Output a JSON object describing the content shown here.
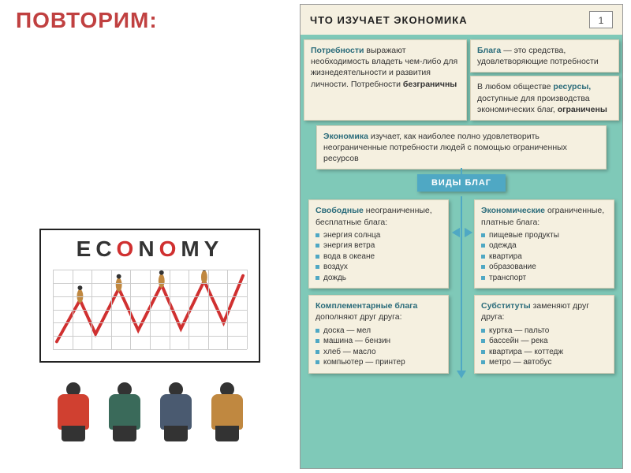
{
  "title": "ПОВТОРИМ:",
  "cartoon": {
    "label_plain": "EC",
    "label_red1": "O",
    "label_mid": "N",
    "label_red2": "O",
    "label_end": "MY",
    "grid_rows": 6,
    "grid_cols": 10,
    "line_color": "#d03030",
    "people_colors": [
      "#d04030",
      "#3a6a5a",
      "#4a5a70",
      "#c08840"
    ]
  },
  "panel": {
    "header_title": "ЧТО ИЗУЧАЕТ ЭКОНОМИКА",
    "page_num": "1",
    "top_left": {
      "lead": "Потребности",
      "text": " выражают необходимость владеть чем-либо для жизнедеятельности и развития личности. Потребности ",
      "bold_end": "безграничны"
    },
    "top_right_a": {
      "lead": "Блага",
      "text": " — это средства, удовлетворяющие потребности"
    },
    "top_right_b": {
      "pre": "В любом обществе ",
      "lead": "ресурсы,",
      "text": " доступные для производства экономических благ, ",
      "bold_end": "ограничены"
    },
    "middle": {
      "lead": "Экономика",
      "text": " изучает, как наиболее полно удовлетворить неограниченные потребности людей с помощью ограниченных ресурсов"
    },
    "section_label": "ВИДЫ БЛАГ",
    "q1": {
      "lead": "Свободные",
      "sub": " неограниченные, бесплатные блага:",
      "items": [
        "энергия солнца",
        "энергия ветра",
        "вода в океане",
        "воздух",
        "дождь"
      ]
    },
    "q2": {
      "lead": "Экономические",
      "sub": " ограниченные, платные блага:",
      "items": [
        "пищевые продукты",
        "одежда",
        "квартира",
        "образование",
        "транспорт"
      ]
    },
    "q3": {
      "lead": "Комплементарные блага",
      "sub": " дополняют друг друга:",
      "items": [
        "доска — мел",
        "машина — бензин",
        "хлеб — масло",
        "компьютер — принтер"
      ]
    },
    "q4": {
      "lead": "Субституты",
      "sub": " заменяют друг друга:",
      "items": [
        "куртка — пальто",
        "бассейн — река",
        "квартира — коттедж",
        "метро — автобус"
      ]
    }
  },
  "colors": {
    "title": "#c04040",
    "panel_bg": "#7fc9b8",
    "box_bg": "#f5f0e0",
    "accent": "#4fa8c4",
    "lead": "#2a6b7a"
  }
}
